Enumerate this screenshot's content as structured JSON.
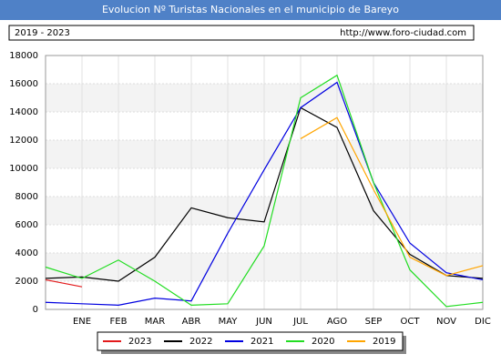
{
  "chart_data": {
    "type": "line",
    "title": "Evolucion Nº Turistas Nacionales en el municipio de Bareyo",
    "period": "2019 - 2023",
    "source": "http://www.foro-ciudad.com",
    "categories": [
      null,
      "ENE",
      "FEB",
      "MAR",
      "ABR",
      "MAY",
      "JUN",
      "JUL",
      "AGO",
      "SEP",
      "OCT",
      "NOV",
      "DIC"
    ],
    "series": [
      {
        "name": "2023",
        "color": "#e31a1c",
        "values": [
          2100,
          1600,
          null,
          null,
          null,
          null,
          null,
          null,
          null,
          null,
          null,
          null,
          null
        ]
      },
      {
        "name": "2022",
        "color": "#000000",
        "values": [
          2200,
          2300,
          2000,
          3700,
          7200,
          6500,
          6200,
          14300,
          12900,
          7000,
          3900,
          2400,
          2200
        ]
      },
      {
        "name": "2021",
        "color": "#0000e0",
        "values": [
          500,
          400,
          300,
          800,
          600,
          5400,
          9900,
          14300,
          16100,
          9000,
          4700,
          2600,
          2100
        ]
      },
      {
        "name": "2020",
        "color": "#22dd22",
        "values": [
          3000,
          2200,
          3500,
          2000,
          300,
          400,
          4500,
          15000,
          16600,
          9000,
          2800,
          200,
          500
        ]
      },
      {
        "name": "2019",
        "color": "#ffa500",
        "values": [
          null,
          null,
          null,
          null,
          null,
          null,
          null,
          12100,
          13600,
          8500,
          3700,
          2400,
          3100
        ]
      }
    ],
    "ylim": [
      0,
      18000
    ],
    "yticks": [
      0,
      2000,
      4000,
      6000,
      8000,
      10000,
      12000,
      14000,
      16000,
      18000
    ],
    "grid": true
  }
}
